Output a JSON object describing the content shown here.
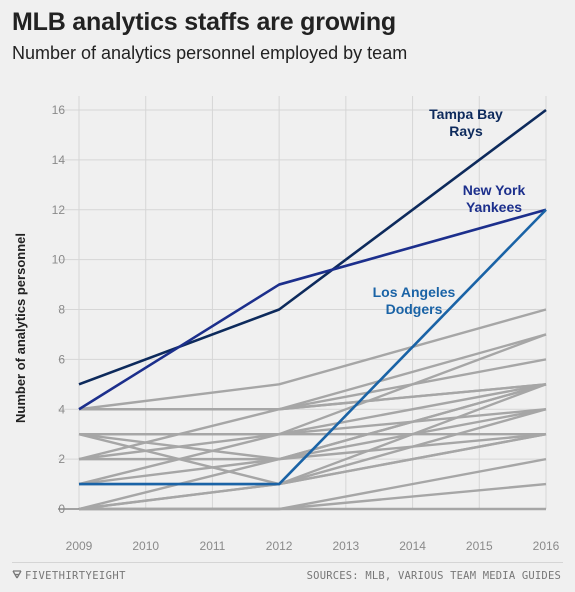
{
  "header": {
    "title": "MLB analytics staffs are growing",
    "subtitle": "Number of analytics personnel employed by team"
  },
  "footer": {
    "brand": "FIVETHIRTYEIGHT",
    "brand_icon": "fivethirtyeight-logo-icon",
    "source": "SOURCES: MLB, VARIOUS TEAM MEDIA GUIDES"
  },
  "colors": {
    "background": "#f0f0f0",
    "grid": "#d6d6d6",
    "other_teams": "#a6a6a6",
    "rays": "#0d2a5c",
    "yankees": "#1c2f8c",
    "dodgers": "#1a63a6"
  },
  "chart_data": {
    "type": "line",
    "ylabel": "Number of analytics personnel",
    "xlabel": "",
    "x": [
      2009,
      2012,
      2016
    ],
    "x_ticks": [
      "2009",
      "2010",
      "2011",
      "2012",
      "2013",
      "2014",
      "2015",
      "2016"
    ],
    "y_ticks": [
      "0",
      "2",
      "4",
      "6",
      "8",
      "10",
      "12",
      "14",
      "16"
    ],
    "xlim": [
      2009,
      2016
    ],
    "ylim": [
      0,
      16
    ],
    "grid": true,
    "highlighted": [
      {
        "name": "Tampa Bay Rays",
        "label_lines": [
          "Tampa Bay",
          "Rays"
        ],
        "color_key": "rays",
        "values": [
          5,
          8,
          16
        ]
      },
      {
        "name": "New York Yankees",
        "label_lines": [
          "New York",
          "Yankees"
        ],
        "color_key": "yankees",
        "values": [
          4,
          9,
          12
        ]
      },
      {
        "name": "Los Angeles Dodgers",
        "label_lines": [
          "Los Angeles",
          "Dodgers"
        ],
        "color_key": "dodgers",
        "values": [
          1,
          1,
          12
        ]
      }
    ],
    "other_teams": [
      [
        4,
        5,
        8
      ],
      [
        4,
        4,
        7
      ],
      [
        4,
        4,
        6
      ],
      [
        4,
        4,
        5
      ],
      [
        3,
        1,
        5
      ],
      [
        3,
        3,
        7
      ],
      [
        3,
        2,
        5
      ],
      [
        2,
        4,
        5
      ],
      [
        2,
        3,
        4
      ],
      [
        2,
        2,
        3
      ],
      [
        1,
        3,
        5
      ],
      [
        1,
        2,
        4
      ],
      [
        1,
        1,
        3
      ],
      [
        0,
        2,
        5
      ],
      [
        0,
        1,
        4
      ],
      [
        0,
        1,
        3
      ],
      [
        0,
        0,
        2
      ],
      [
        0,
        0,
        1
      ],
      [
        0,
        0,
        0
      ],
      [
        3,
        3,
        3
      ]
    ]
  }
}
